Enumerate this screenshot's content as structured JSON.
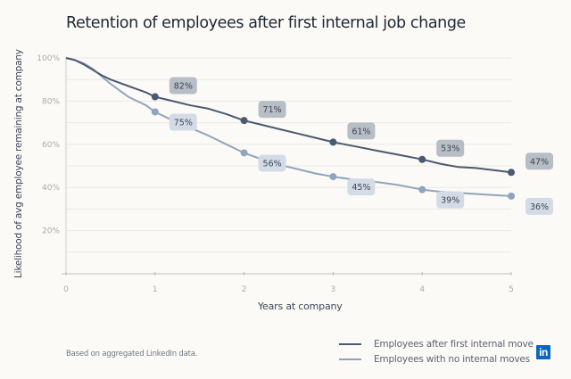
{
  "title": "Retention of employees after first internal job change",
  "source_note": "Based on aggregated LinkedIn data.",
  "brand": {
    "logo_text": "in",
    "logo_color": "#0a66c2"
  },
  "chart_data": {
    "type": "line",
    "title": "Retention of employees after first internal job change",
    "xlabel": "Years at company",
    "ylabel": "Likelihood of avg employee remaining at company",
    "xlim": [
      0,
      5
    ],
    "ylim": [
      0,
      100
    ],
    "x_ticks": [
      0,
      1,
      2,
      3,
      4,
      5
    ],
    "x_tick_labels": [
      "0",
      "1",
      "2",
      "3",
      "4",
      "5"
    ],
    "y_ticks": [
      20,
      40,
      60,
      80,
      100
    ],
    "y_tick_labels": [
      "20%",
      "40%",
      "60%",
      "80%",
      "100%"
    ],
    "grid": "horizontal, every 10%",
    "legend_position": "bottom-right",
    "series": [
      {
        "name": "Employees after first internal move",
        "color": "#4a5a70",
        "label_bg": "#b7bec6",
        "marked_points": {
          "x": [
            1,
            2,
            3,
            4,
            5
          ],
          "y": [
            82,
            71,
            61,
            53,
            47
          ],
          "labels": [
            "82%",
            "71%",
            "61%",
            "53%",
            "47%"
          ]
        },
        "curve": {
          "x": [
            0,
            0.1,
            0.2,
            0.3,
            0.4,
            0.5,
            0.6,
            0.7,
            0.8,
            0.9,
            1.0,
            1.2,
            1.4,
            1.6,
            1.8,
            2.0,
            2.2,
            2.4,
            2.6,
            2.8,
            3.0,
            3.25,
            3.5,
            3.75,
            4.0,
            4.2,
            4.4,
            4.6,
            4.8,
            5.0
          ],
          "y": [
            100,
            99,
            97,
            94.5,
            92,
            90,
            88.5,
            87,
            85.5,
            84,
            82,
            80,
            78,
            76.5,
            74,
            71,
            69,
            67,
            65,
            63,
            61,
            59,
            57,
            55,
            53,
            51,
            49.5,
            49,
            48,
            47
          ]
        }
      },
      {
        "name": "Employees with no internal moves",
        "color": "#8fa5bf",
        "label_bg": "#d3dce6",
        "marked_points": {
          "x": [
            1,
            2,
            3,
            4,
            5
          ],
          "y": [
            75,
            56,
            45,
            39,
            36
          ],
          "labels": [
            "75%",
            "56%",
            "45%",
            "39%",
            "36%"
          ]
        },
        "curve": {
          "x": [
            0,
            0.1,
            0.2,
            0.3,
            0.4,
            0.5,
            0.6,
            0.7,
            0.8,
            0.9,
            1.0,
            1.2,
            1.4,
            1.6,
            1.8,
            2.0,
            2.2,
            2.4,
            2.6,
            2.8,
            3.0,
            3.25,
            3.5,
            3.75,
            4.0,
            4.2,
            4.4,
            4.6,
            4.8,
            5.0
          ],
          "y": [
            100,
            99,
            97.5,
            95,
            91.5,
            88,
            85,
            82,
            80,
            78,
            75,
            71,
            67.5,
            64,
            60,
            56,
            53,
            50.5,
            48.5,
            46.5,
            45,
            43.5,
            42.5,
            41,
            39,
            38,
            37.5,
            37,
            36.5,
            36
          ]
        }
      }
    ]
  }
}
